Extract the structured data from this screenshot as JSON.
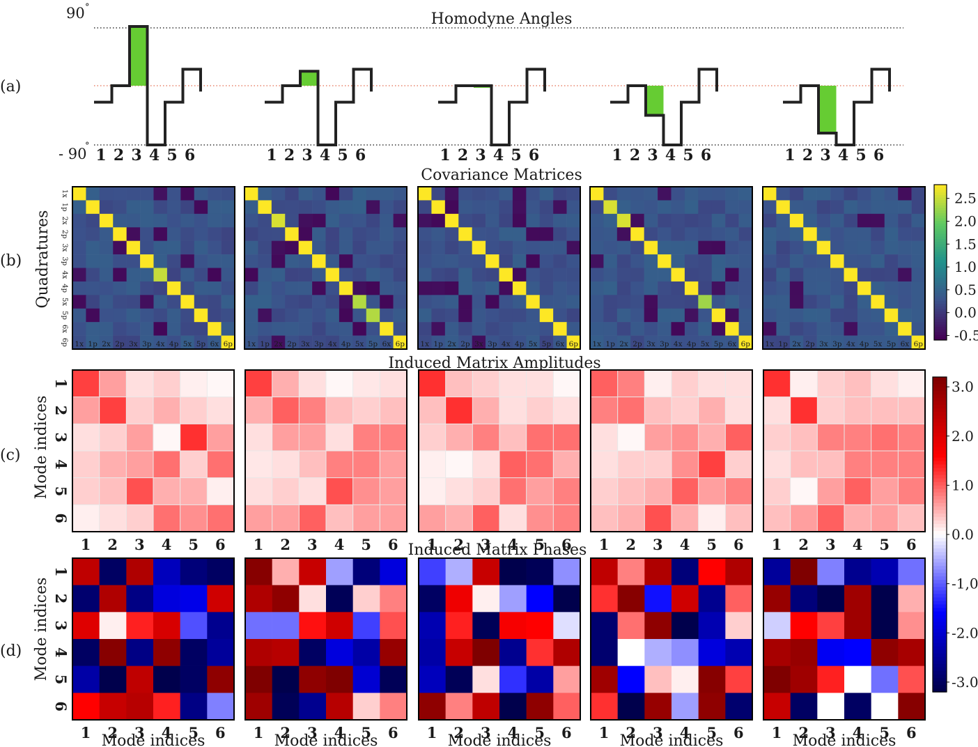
{
  "panels": {
    "a": {
      "label": "(a)",
      "title": "Homodyne Angles",
      "top_label": "90",
      "bottom_label": "- 90",
      "top_marker": "°",
      "bottom_marker": "°"
    },
    "b": {
      "label": "(b)",
      "title": "Covariance Matrices",
      "ylabel": "Quadratures"
    },
    "c": {
      "label": "(c)",
      "title": "Induced Matrix Amplitudes",
      "ylabel": "Mode indices"
    },
    "d": {
      "label": "(d)",
      "title": "Induced Matrix Phases",
      "ylabel": "Mode indices",
      "xlabel": "Mode indices"
    }
  },
  "colors": {
    "highlight": "#66cc33",
    "midline": "#e8836b",
    "boundary_line": "#333333",
    "viridis": [
      "#440154",
      "#3b528b",
      "#21918c",
      "#5ec962",
      "#fde725"
    ],
    "seismic": [
      "#00004c",
      "#0000ff",
      "#ffffff",
      "#ff0000",
      "#7f0000"
    ]
  },
  "chart_data": [
    {
      "type": "line",
      "panel": "a",
      "title": "Homodyne Angles",
      "xlabel": "",
      "ylabel": "",
      "x": [
        "1",
        "2",
        "3",
        "4",
        "5",
        "6"
      ],
      "ylim": [
        -90,
        90
      ],
      "series": [
        {
          "values": [
            -25,
            0,
            90,
            -90,
            -25,
            25
          ]
        },
        {
          "values": [
            -25,
            0,
            22,
            -90,
            -25,
            25
          ]
        },
        {
          "values": [
            -25,
            0,
            0,
            -90,
            -25,
            25
          ]
        },
        {
          "values": [
            -25,
            0,
            -45,
            -90,
            -25,
            25
          ]
        },
        {
          "values": [
            -25,
            0,
            -72,
            -90,
            -25,
            25
          ]
        }
      ],
      "highlight_mode": "3"
    },
    {
      "type": "heatmap",
      "panel": "b",
      "title": "Covariance Matrices",
      "ylabel": "Quadratures",
      "colormap": "viridis",
      "labels": [
        "1x",
        "1p",
        "2x",
        "2p",
        "3x",
        "3p",
        "4x",
        "4p",
        "5x",
        "5p",
        "6x",
        "6p"
      ],
      "colorbar": {
        "min": -0.6,
        "max": 2.8,
        "ticks": [
          "2.5",
          "2.0",
          "1.5",
          "1.0",
          "0.5",
          "0.0",
          "-0.5"
        ],
        "tick_values": [
          2.5,
          2.0,
          1.5,
          1.0,
          0.5,
          0.0,
          -0.5
        ]
      },
      "diagonal": [
        [
          2.8,
          2.8,
          2.8,
          2.8,
          2.8,
          2.8,
          2.5,
          2.8,
          2.8,
          2.8,
          2.8,
          2.8
        ],
        [
          2.8,
          2.8,
          2.6,
          2.8,
          2.8,
          2.8,
          2.8,
          2.8,
          2.4,
          2.4,
          2.8,
          2.8
        ],
        [
          2.8,
          2.8,
          2.8,
          2.8,
          2.8,
          2.8,
          2.8,
          2.8,
          2.8,
          2.8,
          2.8,
          2.8
        ],
        [
          2.8,
          2.6,
          2.6,
          2.8,
          2.8,
          2.8,
          2.8,
          2.8,
          2.3,
          2.8,
          2.8,
          2.8
        ],
        [
          2.8,
          2.8,
          2.8,
          2.8,
          2.8,
          2.8,
          2.8,
          2.8,
          2.8,
          2.8,
          2.8,
          2.8
        ]
      ],
      "off_diagonal_range": [
        -0.6,
        0.5
      ]
    },
    {
      "type": "heatmap",
      "panel": "c",
      "title": "Induced Matrix Amplitudes",
      "ylabel": "Mode indices",
      "colormap": "seismic",
      "categories": [
        "1",
        "2",
        "3",
        "4",
        "5",
        "6"
      ],
      "colorbar": {
        "min": -3.2,
        "max": 3.2,
        "ticks": [
          "3.0",
          "2.0",
          "1.0",
          "0.0",
          "-1,0",
          "-2.0",
          "-3.0"
        ],
        "tick_values": [
          3.0,
          2.0,
          1.0,
          0.0,
          -1.0,
          -2.0,
          -3.0
        ]
      },
      "matrices": [
        [
          [
            1.2,
            0.6,
            0.2,
            0.3,
            0.1,
            0.05
          ],
          [
            0.6,
            1.2,
            0.3,
            0.5,
            0.3,
            0.2
          ],
          [
            0.2,
            0.3,
            0.6,
            0.05,
            1.3,
            0.6
          ],
          [
            0.3,
            0.5,
            0.6,
            0.9,
            0.3,
            0.9
          ],
          [
            0.3,
            0.4,
            1.1,
            0.5,
            0.5,
            0.1
          ],
          [
            0.1,
            0.2,
            0.3,
            0.9,
            0.7,
            0.9
          ]
        ],
        [
          [
            1.2,
            0.5,
            0.2,
            0.05,
            0.15,
            0.2
          ],
          [
            0.5,
            1.0,
            0.8,
            0.4,
            0.3,
            0.4
          ],
          [
            0.2,
            0.6,
            0.6,
            0.2,
            0.8,
            0.8
          ],
          [
            0.15,
            0.2,
            0.4,
            0.8,
            0.8,
            0.6
          ],
          [
            0.2,
            0.3,
            0.2,
            1.1,
            0.7,
            0.6
          ],
          [
            0.6,
            0.6,
            1.0,
            0.4,
            0.6,
            0.6
          ]
        ],
        [
          [
            1.3,
            0.4,
            0.3,
            0.2,
            0.2,
            0.05
          ],
          [
            0.4,
            1.3,
            0.5,
            0.2,
            0.3,
            0.2
          ],
          [
            0.3,
            0.5,
            0.8,
            0.4,
            0.9,
            0.9
          ],
          [
            0.1,
            0.05,
            0.2,
            1.0,
            0.9,
            0.5
          ],
          [
            0.1,
            0.2,
            0.3,
            0.9,
            0.6,
            0.8
          ],
          [
            0.6,
            0.5,
            1.0,
            0.2,
            0.7,
            0.8
          ]
        ],
        [
          [
            1.0,
            0.8,
            0.1,
            0.3,
            0.2,
            0.2
          ],
          [
            0.8,
            0.9,
            0.4,
            0.3,
            0.5,
            0.2
          ],
          [
            0.2,
            0.05,
            0.6,
            0.7,
            0.5,
            1.0
          ],
          [
            0.2,
            0.3,
            0.3,
            0.7,
            1.2,
            0.3
          ],
          [
            0.3,
            0.4,
            0.5,
            1.0,
            0.6,
            0.8
          ],
          [
            0.4,
            0.5,
            1.1,
            0.5,
            0.1,
            0.4
          ]
        ],
        [
          [
            1.3,
            0.1,
            0.3,
            0.4,
            0.2,
            0.1
          ],
          [
            0.2,
            1.3,
            0.3,
            0.4,
            0.4,
            0.4
          ],
          [
            0.3,
            0.4,
            0.8,
            0.8,
            0.9,
            0.8
          ],
          [
            0.2,
            0.4,
            0.4,
            0.8,
            0.8,
            0.8
          ],
          [
            0.3,
            0.05,
            0.6,
            1.0,
            0.6,
            0.8
          ],
          [
            0.4,
            0.6,
            1.0,
            0.5,
            0.6,
            0.4
          ]
        ]
      ]
    },
    {
      "type": "heatmap",
      "panel": "d",
      "title": "Induced Matrix Phases",
      "xlabel": "Mode indices",
      "ylabel": "Mode indices",
      "colormap": "seismic",
      "categories": [
        "1",
        "2",
        "3",
        "4",
        "5",
        "6"
      ],
      "matrices": [
        [
          [
            2.4,
            -3.0,
            2.6,
            -2.2,
            -2.8,
            -3.0
          ],
          [
            -2.9,
            2.6,
            -2.7,
            -1.9,
            -1.8,
            2.2
          ],
          [
            2.0,
            0.1,
            1.4,
            2.1,
            -1.1,
            -2.6
          ],
          [
            -3.0,
            3.1,
            -2.7,
            3.0,
            -3.0,
            -2.5
          ],
          [
            -2.4,
            -3.2,
            2.4,
            -3.2,
            -3.0,
            3.0
          ],
          [
            1.6,
            2.3,
            2.5,
            1.4,
            -2.7,
            -0.8
          ]
        ],
        [
          [
            3.1,
            0.5,
            2.3,
            -0.6,
            -2.8,
            -1.9
          ],
          [
            2.6,
            3.0,
            0.2,
            -3.1,
            0.3,
            0.8
          ],
          [
            -0.9,
            -0.9,
            1.5,
            2.2,
            -1.2,
            1.1
          ],
          [
            2.6,
            2.5,
            -3.0,
            -1.9,
            -2.4,
            2.9
          ],
          [
            3.2,
            -3.2,
            3.0,
            3.2,
            -2.0,
            -3.1
          ],
          [
            2.8,
            -3.1,
            -2.6,
            2.5,
            0.3,
            0.8
          ]
        ],
        [
          [
            -1.2,
            -0.5,
            2.3,
            -3.2,
            -3.1,
            -0.7
          ],
          [
            -3.0,
            1.8,
            0.1,
            -0.6,
            -1.6,
            -3.2
          ],
          [
            -2.3,
            1.4,
            -3.1,
            1.7,
            1.6,
            -0.2
          ],
          [
            -2.4,
            2.3,
            3.2,
            -2.6,
            1.3,
            2.6
          ],
          [
            -2.2,
            -3.1,
            0.2,
            -1.3,
            -2.4,
            0.6
          ],
          [
            3.0,
            0.8,
            2.4,
            -3.3,
            3.0,
            1.0
          ]
        ],
        [
          [
            2.4,
            0.8,
            2.6,
            -2.8,
            1.6,
            2.6
          ],
          [
            1.3,
            3.1,
            -1.5,
            2.2,
            -2.6,
            1.0
          ],
          [
            -2.9,
            0.9,
            3.0,
            -3.2,
            -2.3,
            0.3
          ],
          [
            -2.9,
            0.0,
            -0.5,
            -0.7,
            -1.9,
            -2.3
          ],
          [
            2.8,
            -1.6,
            0.4,
            0.1,
            3.1,
            1.2
          ],
          [
            1.3,
            -3.2,
            2.9,
            -0.6,
            3.0,
            -2.9
          ]
        ],
        [
          [
            -2.5,
            3.3,
            -0.8,
            -2.6,
            -2.3,
            -0.9
          ],
          [
            2.9,
            -2.8,
            -3.2,
            2.8,
            -3.3,
            0.5
          ],
          [
            -0.3,
            1.6,
            1.2,
            2.8,
            -3.3,
            0.7
          ],
          [
            2.7,
            2.9,
            -1.7,
            -1.6,
            3.0,
            2.7
          ],
          [
            3.3,
            2.8,
            1.4,
            0.0,
            -0.9,
            1.1
          ],
          [
            2.3,
            -3.0,
            0.0,
            -3.0,
            0.0,
            3.1
          ]
        ]
      ]
    }
  ]
}
